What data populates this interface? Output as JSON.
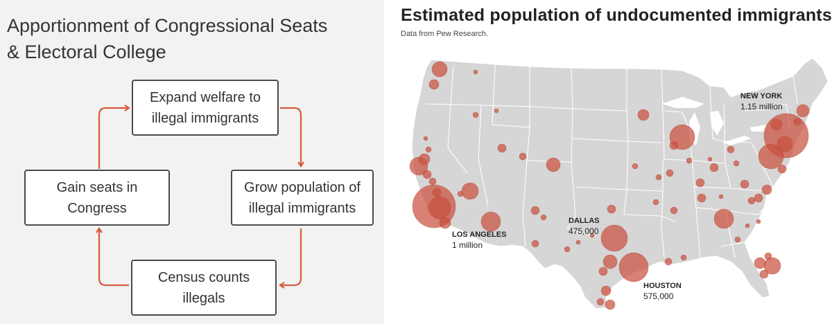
{
  "diagram": {
    "title_line1": "Apportionment of Congressional Seats",
    "title_line2": "& Electoral College",
    "boxes": {
      "expand": [
        "Expand welfare to",
        "illegal immigrants"
      ],
      "grow": [
        "Grow population of",
        "illegal immigrants"
      ],
      "census": [
        "Census counts",
        "illegals"
      ],
      "gain": [
        "Gain seats in",
        "Congress"
      ]
    },
    "arrow_color": "#d65a3c"
  },
  "map": {
    "title": "Estimated population of undocumented immigrants",
    "subtitle": "Data from Pew Research.",
    "bubble_color": "#c9513f",
    "land_color": "#d6d6d6",
    "cities": {
      "new_york": {
        "name": "NEW YORK",
        "value": "1.15 million"
      },
      "los_angeles": {
        "name": "LOS ANGELES",
        "value": "1 million"
      },
      "dallas": {
        "name": "DALLAS",
        "value": "475,000"
      },
      "houston": {
        "name": "HOUSTON",
        "value": "575,000"
      }
    }
  }
}
